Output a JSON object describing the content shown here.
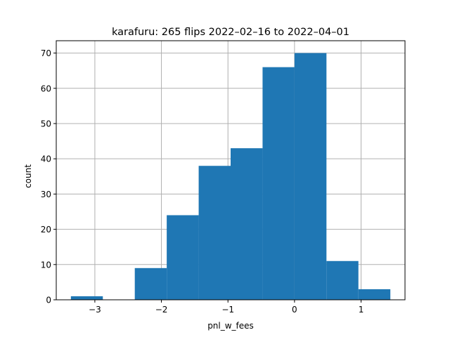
{
  "chart_data": {
    "type": "bar",
    "title": "karafuru: 265 flips 2022–02–16 to 2022–04–01",
    "xlabel": "pnl_w_fees",
    "ylabel": "count",
    "bins": [
      {
        "x0": -3.36,
        "x1": -2.88,
        "count": 1
      },
      {
        "x0": -2.88,
        "x1": -2.4,
        "count": 0
      },
      {
        "x0": -2.4,
        "x1": -1.92,
        "count": 9
      },
      {
        "x0": -1.92,
        "x1": -1.44,
        "count": 24
      },
      {
        "x0": -1.44,
        "x1": -0.96,
        "count": 38
      },
      {
        "x0": -0.96,
        "x1": -0.48,
        "count": 43
      },
      {
        "x0": -0.48,
        "x1": 0.0,
        "count": 66
      },
      {
        "x0": 0.0,
        "x1": 0.48,
        "count": 70
      },
      {
        "x0": 0.48,
        "x1": 0.96,
        "count": 11
      },
      {
        "x0": 0.96,
        "x1": 1.44,
        "count": 3
      }
    ],
    "xlim": [
      -3.58,
      1.66
    ],
    "ylim": [
      0,
      73.5
    ],
    "xticks": [
      -3,
      -2,
      -1,
      0,
      1
    ],
    "xtick_labels": [
      "−3",
      "−2",
      "−1",
      "0",
      "1"
    ],
    "yticks": [
      0,
      10,
      20,
      30,
      40,
      50,
      60,
      70
    ],
    "ytick_labels": [
      "0",
      "10",
      "20",
      "30",
      "40",
      "50",
      "60",
      "70"
    ],
    "grid": true,
    "bar_color": "#1f77b4",
    "grid_color": "#b0b0b0"
  }
}
